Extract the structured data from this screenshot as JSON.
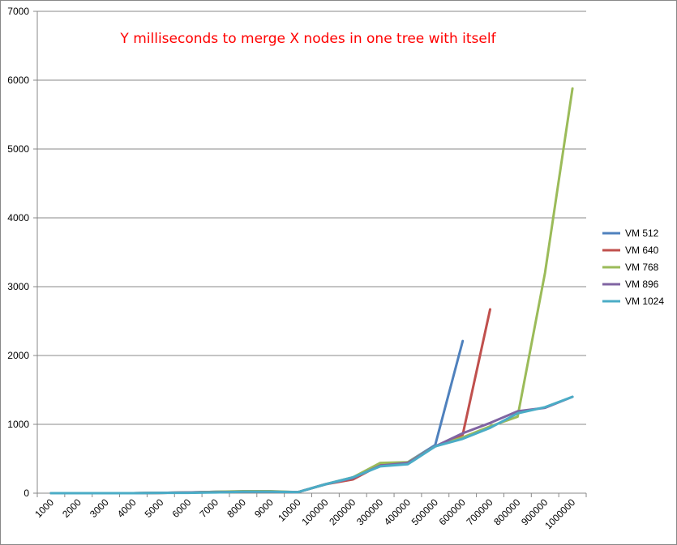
{
  "chart_data": {
    "type": "line",
    "title": "Y milliseconds to merge X nodes in one tree with itself",
    "xlabel": "",
    "ylabel": "",
    "categories": [
      "1000",
      "2000",
      "3000",
      "4000",
      "5000",
      "6000",
      "7000",
      "8000",
      "9000",
      "10000",
      "100000",
      "200000",
      "300000",
      "400000",
      "500000",
      "600000",
      "700000",
      "800000",
      "900000",
      "1000000"
    ],
    "ylim": [
      0,
      7000
    ],
    "yticks": [
      0,
      1000,
      2000,
      3000,
      4000,
      5000,
      6000,
      7000
    ],
    "grid": true,
    "legend": "right",
    "series": [
      {
        "name": "VM 512",
        "color": "#4f81bd",
        "values": [
          0,
          0,
          0,
          0,
          5,
          10,
          20,
          25,
          25,
          15,
          130,
          230,
          410,
          450,
          700,
          2210,
          null,
          null,
          null,
          null
        ]
      },
      {
        "name": "VM 640",
        "color": "#c0504d",
        "values": [
          0,
          0,
          0,
          0,
          5,
          10,
          15,
          20,
          20,
          15,
          130,
          200,
          410,
          440,
          680,
          850,
          2670,
          null,
          null,
          null
        ]
      },
      {
        "name": "VM 768",
        "color": "#9bbb59",
        "values": [
          0,
          0,
          0,
          0,
          5,
          10,
          20,
          30,
          30,
          15,
          130,
          230,
          440,
          450,
          680,
          810,
          970,
          1110,
          3200,
          5880
        ]
      },
      {
        "name": "VM 896",
        "color": "#8064a2",
        "values": [
          0,
          0,
          0,
          0,
          5,
          10,
          15,
          20,
          20,
          15,
          130,
          220,
          400,
          440,
          680,
          870,
          1020,
          1190,
          1240,
          1400
        ]
      },
      {
        "name": "VM 1024",
        "color": "#4bacc6",
        "values": [
          0,
          0,
          0,
          0,
          5,
          5,
          10,
          20,
          20,
          15,
          130,
          230,
          390,
          420,
          680,
          790,
          950,
          1160,
          1250,
          1400
        ]
      }
    ]
  }
}
